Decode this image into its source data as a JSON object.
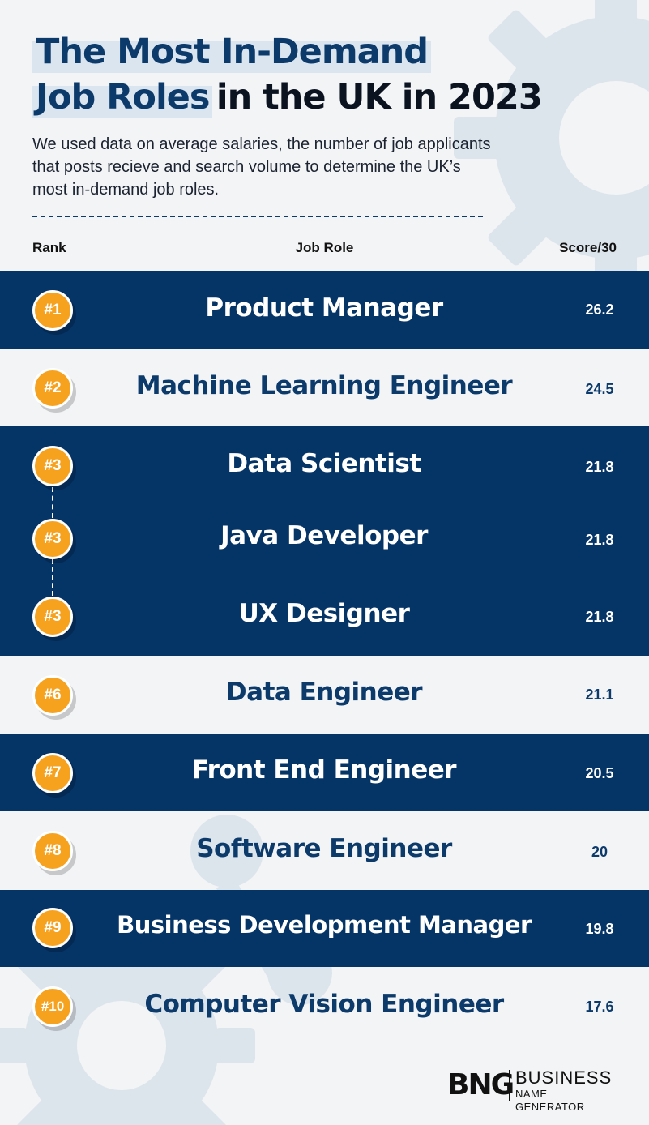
{
  "title": {
    "line1_highlight": "The Most In-Demand",
    "line2_highlight": "Job Roles",
    "line2_plain": "in the UK in 2023"
  },
  "intro": "We used data on average salaries, the number of job applicants that posts recieve and search volume to determine the UK’s most in-demand job roles.",
  "columns": {
    "rank": "Rank",
    "role": "Job Role",
    "score": "Score/30"
  },
  "colors": {
    "navy": "#053466",
    "accent": "#f6a21e",
    "highlight": "#dbe5ef",
    "background": "#f3f4f6"
  },
  "rows": [
    {
      "rank": "#1",
      "role": "Product Manager",
      "score": "26.2"
    },
    {
      "rank": "#2",
      "role": "Machine Learning Engineer",
      "score": "24.5"
    },
    {
      "rank": "#3",
      "role": "Data Scientist",
      "score": "21.8"
    },
    {
      "rank": "#3",
      "role": "Java Developer",
      "score": "21.8"
    },
    {
      "rank": "#3",
      "role": "UX Designer",
      "score": "21.8"
    },
    {
      "rank": "#6",
      "role": "Data Engineer",
      "score": "21.1"
    },
    {
      "rank": "#7",
      "role": "Front End Engineer",
      "score": "20.5"
    },
    {
      "rank": "#8",
      "role": "Software Engineer",
      "score": "20"
    },
    {
      "rank": "#9",
      "role": "Business Development Manager",
      "score": "19.8"
    },
    {
      "rank": "#10",
      "role": "Computer Vision Engineer",
      "score": "17.6"
    }
  ],
  "logo": {
    "mark": "BNG",
    "line1": "BUSINESS",
    "line2": "NAME GENERATOR"
  }
}
